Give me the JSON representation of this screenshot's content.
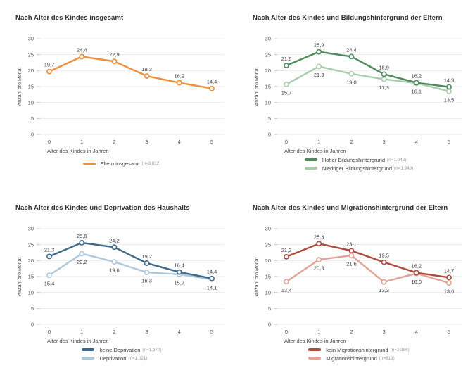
{
  "page": {
    "background": "#ffffff"
  },
  "axis_style": {
    "grid_color": "#ebebeb",
    "tick_color": "#c9c9c9",
    "tick_label_color": "#555555",
    "axis_title_color": "#444444",
    "value_label_color": "#3c3c3c"
  },
  "chart_data": [
    {
      "type": "line",
      "title": "Nach Alter des Kindes insgesamt",
      "xlabel": "Alter des Kindes in Jahren",
      "ylabel": "Anzahl pro Monat",
      "categories": [
        "0",
        "1",
        "2",
        "3",
        "4",
        "5"
      ],
      "ylim": [
        0,
        30
      ],
      "yticks": [
        "0",
        "5",
        "10",
        "15",
        "20",
        "25",
        "30"
      ],
      "grid": true,
      "legend_position": "bottom",
      "series": [
        {
          "name": "Eltern insgesamt",
          "n_label": "(n=3.012)",
          "color": "#ef8e3b",
          "values": [
            19.7,
            24.4,
            22.9,
            18.3,
            16.2,
            14.4
          ],
          "value_labels": [
            "19,7",
            "24,4",
            "22,9",
            "18,3",
            "16,2",
            "14,4"
          ],
          "label_position": "above"
        }
      ]
    },
    {
      "type": "line",
      "title": "Nach Alter des Kindes und Bildungshintergrund der Eltern",
      "xlabel": "Alter des Kindes in Jahren",
      "ylabel": "Anzahl pro Monat",
      "categories": [
        "0",
        "1",
        "2",
        "3",
        "4",
        "5"
      ],
      "ylim": [
        0,
        30
      ],
      "yticks": [
        "0",
        "5",
        "10",
        "15",
        "20",
        "25",
        "30"
      ],
      "grid": true,
      "legend_position": "bottom",
      "series": [
        {
          "name": "Hoher Bildungshintergrund",
          "n_label": "(n=1.042)",
          "color": "#4c8c5c",
          "values": [
            21.6,
            25.9,
            24.4,
            18.9,
            16.2,
            14.9
          ],
          "value_labels": [
            "21,6",
            "25,9",
            "24,4",
            "18,9",
            "16,2",
            "14,9"
          ],
          "label_position": "above"
        },
        {
          "name": "Niedriger Bildungshintergrund",
          "n_label": "(n=1.948)",
          "color": "#abcbad",
          "values": [
            15.7,
            21.3,
            19.0,
            17.3,
            16.1,
            13.5
          ],
          "value_labels": [
            "15,7",
            "21,3",
            "19,0",
            "17,3",
            "16,1",
            "13,5"
          ],
          "label_position": "below"
        }
      ]
    },
    {
      "type": "line",
      "title": "Nach Alter des Kindes und Deprivation des Haushalts",
      "xlabel": "Alter des Kindes in Jahren",
      "ylabel": "Anzahl pro Monat",
      "categories": [
        "0",
        "1",
        "2",
        "3",
        "4",
        "5"
      ],
      "ylim": [
        0,
        30
      ],
      "yticks": [
        "0",
        "5",
        "10",
        "15",
        "20",
        "25",
        "30"
      ],
      "grid": true,
      "legend_position": "bottom",
      "series": [
        {
          "name": "keine Deprivation",
          "n_label": "(n=1.970)",
          "color": "#3d6889",
          "values": [
            21.3,
            25.6,
            24.2,
            19.2,
            16.4,
            14.4
          ],
          "value_labels": [
            "21,3",
            "25,6",
            "24,2",
            "19,2",
            "16,4",
            "14,4"
          ],
          "label_position": "above"
        },
        {
          "name": "Deprivation",
          "n_label": "(n=1.021)",
          "color": "#aec8dc",
          "values": [
            15.4,
            22.2,
            19.6,
            16.3,
            15.7,
            14.1
          ],
          "value_labels": [
            "15,4",
            "22,2",
            "19,6",
            "16,3",
            "15,7",
            "14,1"
          ],
          "label_position": "below"
        }
      ]
    },
    {
      "type": "line",
      "title": "Nach Alter des Kindes und Migrationshintergrund der Eltern",
      "xlabel": "Alter des Kindes in Jahren",
      "ylabel": "Anzahl pro Monat",
      "categories": [
        "0",
        "1",
        "2",
        "3",
        "4",
        "5"
      ],
      "ylim": [
        0,
        30
      ],
      "yticks": [
        "0",
        "5",
        "10",
        "15",
        "20",
        "25",
        "30"
      ],
      "grid": true,
      "legend_position": "bottom",
      "series": [
        {
          "name": "kein Migrationshintergrund",
          "n_label": "(n=2.386)",
          "color": "#ac4a3b",
          "values": [
            21.2,
            25.3,
            23.1,
            19.5,
            16.2,
            14.7
          ],
          "value_labels": [
            "21,2",
            "25,3",
            "23,1",
            "19,5",
            "16,2",
            "14,7"
          ],
          "label_position": "above"
        },
        {
          "name": "Migrationshintergrund",
          "n_label": "(n=613)",
          "color": "#e2a396",
          "values": [
            13.4,
            20.3,
            21.6,
            13.3,
            16.0,
            13.0
          ],
          "value_labels": [
            "13,4",
            "20,3",
            "21,6",
            "13,3",
            "16,0",
            "13,0"
          ],
          "label_position": "below"
        }
      ]
    }
  ]
}
